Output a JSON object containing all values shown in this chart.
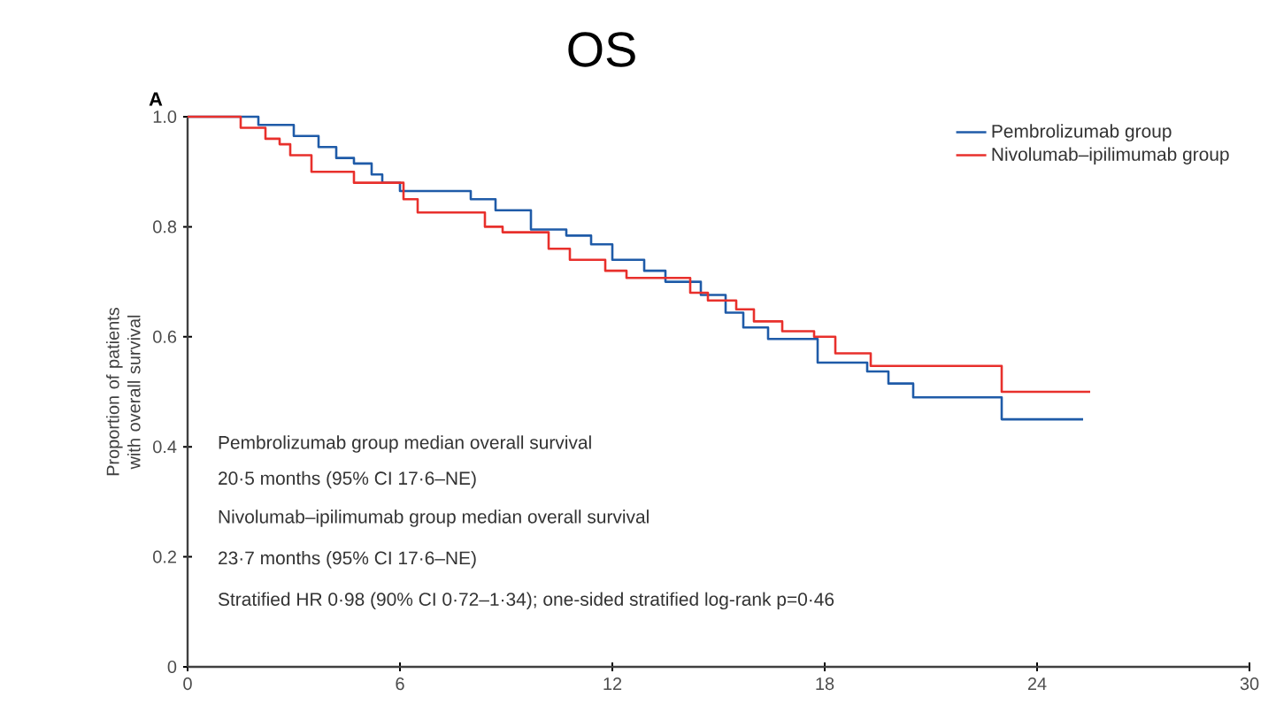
{
  "chart_data": {
    "type": "step",
    "title": "OS",
    "ylabel": "Proportion of patients with overall survival",
    "xlim": [
      0,
      30
    ],
    "ylim": [
      0,
      1
    ],
    "xticks": [
      0,
      6,
      12,
      18,
      24,
      30
    ],
    "yticks": [
      0,
      0.2,
      0.4,
      0.6,
      0.8,
      {
        "value": 1,
        "label": "1.0"
      }
    ],
    "legend": "top right",
    "series": [
      {
        "name": "Pembrolizumab group",
        "color": "#1f5ba8",
        "x": [
          0,
          2.0,
          3.0,
          3.7,
          4.2,
          4.7,
          5.2,
          5.5,
          6.0,
          8.0,
          8.7,
          9.7,
          10.7,
          11.4,
          12.0,
          12.9,
          13.5,
          14.5,
          15.2,
          15.7,
          16.4,
          17.8,
          19.2,
          19.8,
          20.5,
          23.0,
          25.3
        ],
        "values": [
          1.0,
          0.985,
          0.965,
          0.945,
          0.925,
          0.915,
          0.895,
          0.88,
          0.865,
          0.85,
          0.83,
          0.795,
          0.784,
          0.768,
          0.74,
          0.72,
          0.7,
          0.676,
          0.644,
          0.617,
          0.596,
          0.553,
          0.537,
          0.515,
          0.49,
          0.45,
          0.45
        ]
      },
      {
        "name": "Nivolumab–ipilimumab group",
        "color": "#e8302c",
        "x": [
          0,
          1.5,
          2.2,
          2.6,
          2.9,
          3.5,
          4.7,
          6.1,
          6.5,
          8.4,
          8.9,
          10.2,
          10.8,
          11.8,
          12.4,
          14.2,
          14.7,
          15.5,
          16.0,
          16.8,
          17.7,
          18.3,
          19.3,
          23.0,
          25.5
        ],
        "values": [
          1.0,
          0.98,
          0.96,
          0.95,
          0.93,
          0.9,
          0.88,
          0.85,
          0.826,
          0.8,
          0.79,
          0.76,
          0.74,
          0.72,
          0.707,
          0.68,
          0.666,
          0.65,
          0.628,
          0.61,
          0.6,
          0.57,
          0.547,
          0.5,
          0.5
        ]
      }
    ],
    "annotations": [
      "A",
      "Pembrolizumab group median overall survival",
      "20·5 months (95% CI 17·6–NE)",
      "Nivolumab–ipilimumab group median overall survival",
      "23·7 months (95% CI 17·6–NE)",
      "Stratified HR 0·98 (90% CI 0·72–1·34); one-sided stratified log-rank p=0·46"
    ]
  }
}
